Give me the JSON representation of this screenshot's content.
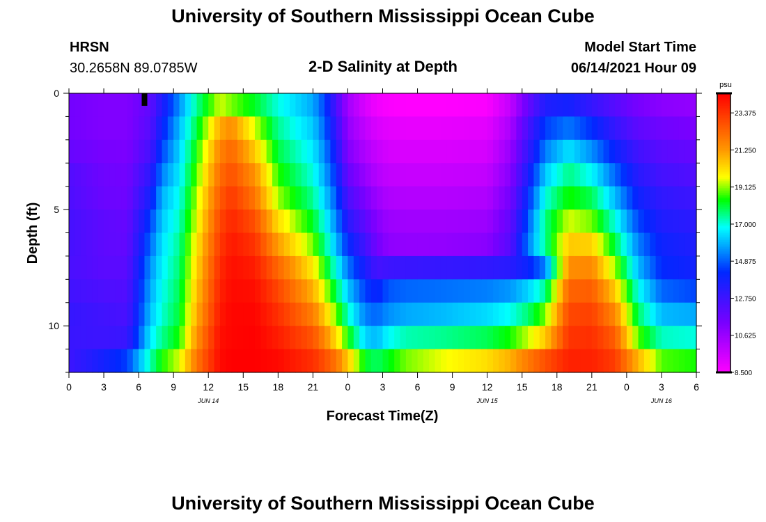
{
  "header": {
    "title": "University of Southern Mississippi Ocean Cube",
    "station": "HRSN",
    "coords": "30.2658N  89.0785W",
    "subtitle": "2-D Salinity at Depth",
    "model_label": "Model Start Time",
    "model_time": "06/14/2021 Hour 09"
  },
  "footer": {
    "title": "University of Southern Mississippi Ocean Cube"
  },
  "chart_data": {
    "type": "heatmap",
    "title": "2-D Salinity at Depth",
    "xlabel": "Forecast Time(Z)",
    "ylabel": "Depth (ft)",
    "x_range_hours": [
      0,
      54
    ],
    "y_range_ft": [
      0,
      12
    ],
    "x_tick_labels": [
      "0",
      "3",
      "6",
      "9",
      "12",
      "15",
      "18",
      "21",
      "0",
      "3",
      "6",
      "9",
      "12",
      "15",
      "18",
      "21",
      "0",
      "3",
      "6"
    ],
    "date_labels": [
      {
        "label": "JUN 14",
        "hour": 12
      },
      {
        "label": "JUN 15",
        "hour": 36
      },
      {
        "label": "JUN 16",
        "hour": 51
      }
    ],
    "y_tick_labels": [
      "0",
      "5",
      "10"
    ],
    "y_tick_values": [
      0,
      5,
      10
    ],
    "current_time_marker_hour": 6.5,
    "colorbar": {
      "unit": "psu",
      "min": 8.5,
      "max": 24.5,
      "tick_labels": [
        "23.375",
        "21.250",
        "19.125",
        "17.000",
        "14.875",
        "12.750",
        "10.625",
        "8.500"
      ],
      "tick_values": [
        23.375,
        21.25,
        19.125,
        17.0,
        14.875,
        12.75,
        10.625,
        8.5
      ]
    },
    "depth_rows_ft": [
      0.5,
      1.5,
      2.5,
      3.5,
      4.5,
      5.5,
      6.5,
      7.5,
      8.5,
      9.5,
      10.5,
      11.5
    ],
    "profile_hours": [
      0,
      3,
      5,
      7,
      8,
      9.5,
      11,
      13,
      14,
      16,
      18,
      21,
      22,
      23,
      24,
      25.5,
      26.5,
      27.5,
      29,
      32,
      36,
      38,
      39.5,
      41,
      43,
      45,
      47,
      49,
      51,
      54
    ],
    "salinity_psu": [
      [
        11.5,
        11.5,
        11.8,
        12.3,
        12.4,
        12.6,
        12.6,
        12.5,
        12.7,
        13.0,
        12.9,
        12.8
      ],
      [
        11.2,
        11.2,
        11.4,
        11.6,
        11.7,
        12.0,
        12.0,
        12.1,
        12.4,
        12.7,
        12.8,
        13.8
      ],
      [
        11.2,
        11.2,
        11.3,
        11.5,
        11.6,
        11.8,
        11.9,
        12.1,
        12.3,
        12.5,
        12.9,
        14.5
      ],
      [
        12.0,
        12.2,
        12.6,
        13.2,
        13.8,
        14.5,
        15.0,
        15.5,
        15.8,
        16.1,
        16.6,
        17.3
      ],
      [
        13.5,
        14.0,
        14.6,
        15.3,
        15.9,
        16.2,
        16.5,
        16.7,
        16.9,
        17.1,
        17.5,
        18.5
      ],
      [
        15.5,
        16.0,
        16.3,
        16.6,
        16.9,
        17.2,
        17.5,
        17.7,
        17.9,
        18.1,
        18.5,
        19.5
      ],
      [
        17.5,
        18.0,
        18.5,
        18.9,
        19.3,
        19.6,
        20.0,
        20.3,
        20.6,
        20.9,
        21.4,
        22.0
      ],
      [
        19.5,
        21.0,
        21.7,
        22.2,
        22.6,
        23.0,
        23.3,
        23.6,
        23.8,
        24.0,
        24.2,
        24.3
      ],
      [
        19.0,
        21.5,
        22.3,
        22.8,
        23.3,
        23.7,
        24.0,
        24.2,
        24.3,
        24.4,
        24.4,
        24.5
      ],
      [
        18.2,
        19.5,
        20.5,
        21.4,
        22.0,
        22.8,
        23.4,
        23.9,
        24.2,
        24.4,
        24.5,
        24.5
      ],
      [
        17.0,
        17.5,
        18.0,
        18.6,
        19.2,
        20.2,
        21.2,
        22.3,
        23.0,
        23.5,
        23.9,
        24.3
      ],
      [
        15.8,
        16.2,
        16.6,
        17.0,
        17.5,
        18.2,
        19.0,
        20.0,
        20.9,
        21.8,
        22.7,
        23.5
      ],
      [
        14.6,
        15.0,
        15.4,
        15.8,
        16.3,
        16.9,
        17.6,
        18.5,
        19.5,
        20.5,
        21.6,
        22.8
      ],
      [
        12.5,
        13.0,
        13.6,
        14.2,
        14.8,
        15.4,
        16.0,
        16.9,
        17.9,
        19.0,
        20.2,
        22.0
      ],
      [
        10.5,
        10.8,
        11.2,
        11.8,
        12.5,
        13.3,
        14.2,
        15.2,
        16.2,
        17.2,
        18.5,
        20.5
      ],
      [
        9.3,
        9.8,
        10.2,
        10.7,
        11.3,
        12.0,
        12.7,
        13.6,
        14.5,
        15.3,
        16.3,
        18.2
      ],
      [
        8.8,
        9.3,
        9.7,
        10.1,
        10.6,
        11.1,
        11.5,
        12.6,
        14.0,
        15.0,
        16.0,
        17.8
      ],
      [
        8.6,
        9.1,
        9.4,
        9.8,
        10.2,
        10.6,
        10.9,
        12.8,
        14.8,
        15.5,
        16.8,
        18.3
      ],
      [
        8.5,
        9.0,
        9.3,
        9.7,
        10.1,
        10.5,
        10.8,
        12.9,
        15.0,
        15.8,
        17.3,
        19.0
      ],
      [
        8.5,
        9.0,
        9.3,
        9.7,
        10.1,
        10.5,
        10.8,
        13.0,
        15.1,
        16.0,
        17.5,
        19.6
      ],
      [
        8.6,
        9.1,
        9.4,
        9.8,
        10.2,
        10.6,
        11.0,
        13.1,
        15.3,
        16.4,
        17.9,
        20.2
      ],
      [
        9.8,
        10.3,
        10.7,
        11.1,
        11.5,
        11.9,
        12.2,
        13.3,
        15.6,
        16.9,
        18.5,
        20.9
      ],
      [
        11.8,
        12.5,
        13.0,
        13.6,
        14.2,
        14.8,
        15.2,
        14.0,
        16.3,
        17.7,
        19.4,
        21.9
      ],
      [
        13.5,
        14.5,
        15.3,
        16.2,
        17.0,
        17.6,
        17.5,
        15.3,
        17.5,
        19.0,
        20.5,
        22.8
      ],
      [
        13.8,
        15.2,
        16.5,
        17.6,
        18.5,
        19.5,
        20.5,
        21.5,
        22.4,
        23.0,
        23.4,
        23.8
      ],
      [
        13.0,
        14.3,
        15.5,
        16.8,
        17.9,
        19.0,
        20.4,
        21.6,
        22.5,
        23.1,
        23.5,
        23.8
      ],
      [
        12.2,
        13.0,
        14.0,
        15.0,
        16.0,
        17.0,
        18.0,
        19.2,
        20.5,
        21.6,
        22.5,
        23.2
      ],
      [
        11.4,
        12.0,
        12.7,
        13.3,
        13.9,
        14.6,
        15.3,
        16.0,
        16.9,
        17.8,
        18.8,
        20.8
      ],
      [
        11.0,
        11.6,
        12.1,
        12.6,
        13.1,
        13.5,
        13.9,
        14.2,
        15.0,
        16.0,
        17.2,
        18.8
      ],
      [
        10.8,
        11.3,
        11.8,
        12.3,
        12.8,
        13.2,
        13.5,
        13.8,
        14.6,
        15.8,
        17.0,
        18.5
      ]
    ]
  }
}
